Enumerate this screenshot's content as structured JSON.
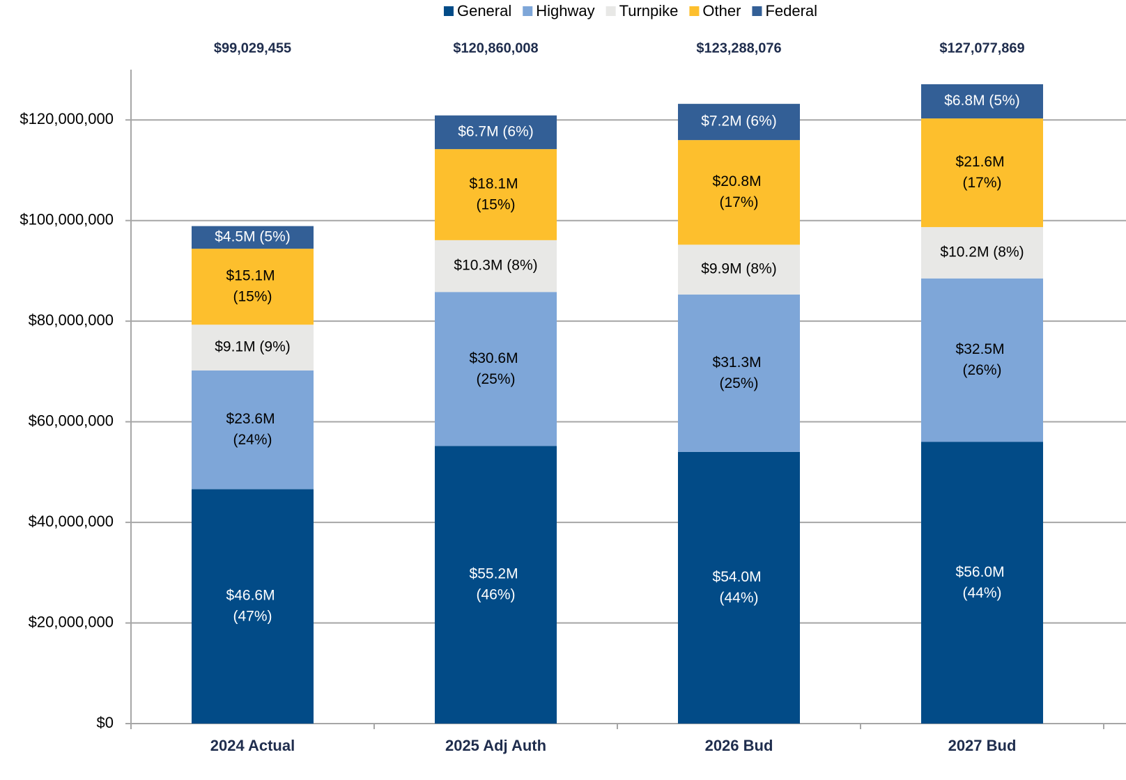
{
  "chart_data": {
    "type": "stacked_bar",
    "categories": [
      "2024 Actual",
      "2025 Adj Auth",
      "2026 Bud",
      "2027 Bud"
    ],
    "series": [
      {
        "name": "General",
        "color": "#024b87",
        "values": [
          46600000,
          55200000,
          54000000,
          56000000
        ],
        "value_labels": [
          "$46.6M (47%)",
          "$55.2M (46%)",
          "$54.0M (44%)",
          "$56.0M (44%)"
        ]
      },
      {
        "name": "Highway",
        "color": "#7ea6d8",
        "values": [
          23600000,
          30600000,
          31300000,
          32500000
        ],
        "value_labels": [
          "$23.6M (24%)",
          "$30.6M (25%)",
          "$31.3M (25%)",
          "$32.5M (26%)"
        ]
      },
      {
        "name": "Turnpike",
        "color": "#e8e8e6",
        "values": [
          9100000,
          10300000,
          9900000,
          10200000
        ],
        "value_labels": [
          "$9.1M (9%)",
          "$10.3M (8%)",
          "$9.9M (8%)",
          "$10.2M (8%)"
        ]
      },
      {
        "name": "Other",
        "color": "#fdbf2d",
        "values": [
          15100000,
          18100000,
          20800000,
          21600000
        ],
        "value_labels": [
          "$15.1M (15%)",
          "$18.1M (15%)",
          "$20.8M (17%)",
          "$21.6M (17%)"
        ]
      },
      {
        "name": "Federal",
        "color": "#335f96",
        "values": [
          4500000,
          6700000,
          7200000,
          6800000
        ],
        "value_labels": [
          "$4.5M (5%)",
          "$6.7M (6%)",
          "$7.2M (6%)",
          "$6.8M (5%)"
        ]
      }
    ],
    "totals": [
      99029455,
      120860008,
      123288076,
      127077869
    ],
    "total_labels": [
      "$99,029,455",
      "$120,860,008",
      "$123,288,076",
      "$127,077,869"
    ],
    "ylim": [
      0,
      130000000
    ],
    "yticks": [
      {
        "value": 0,
        "label": "$0"
      },
      {
        "value": 20000000,
        "label": "$20,000,000"
      },
      {
        "value": 40000000,
        "label": "$40,000,000"
      },
      {
        "value": 60000000,
        "label": "$60,000,000"
      },
      {
        "value": 80000000,
        "label": "$80,000,000"
      },
      {
        "value": 100000000,
        "label": "$100,000,000"
      },
      {
        "value": 120000000,
        "label": "$120,000,000"
      }
    ],
    "grid": true,
    "legend": "top"
  }
}
